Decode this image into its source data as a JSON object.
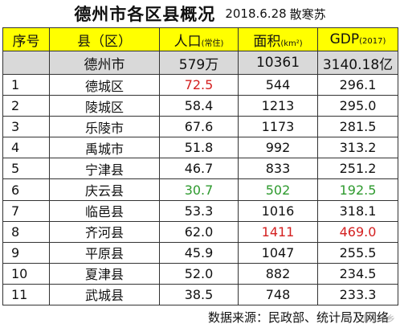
{
  "title": {
    "main": "德州市各区县概况",
    "date": "2018.6.28",
    "author": "散寒苏"
  },
  "headers": {
    "index": "序号",
    "county": "县（区）",
    "population": "人口",
    "population_unit": "(常住)",
    "area": "面积",
    "area_unit": "(km²)",
    "gdp": "GDP",
    "gdp_unit": "(2017)"
  },
  "total": {
    "name": "德州市",
    "population": "579万",
    "area": "10361",
    "gdp": "3140.18亿"
  },
  "rows": [
    {
      "idx": "1",
      "name": "德城区",
      "population": "72.5",
      "area": "544",
      "gdp": "296.1"
    },
    {
      "idx": "2",
      "name": "陵城区",
      "population": "58.4",
      "area": "1213",
      "gdp": "295.0"
    },
    {
      "idx": "3",
      "name": "乐陵市",
      "population": "67.6",
      "area": "1173",
      "gdp": "281.5"
    },
    {
      "idx": "4",
      "name": "禹城市",
      "population": "51.8",
      "area": "992",
      "gdp": "313.2"
    },
    {
      "idx": "5",
      "name": "宁津县",
      "population": "46.7",
      "area": "833",
      "gdp": "251.2"
    },
    {
      "idx": "6",
      "name": "庆云县",
      "population": "30.7",
      "area": "502",
      "gdp": "192.5"
    },
    {
      "idx": "7",
      "name": "临邑县",
      "population": "53.3",
      "area": "1016",
      "gdp": "318.1"
    },
    {
      "idx": "8",
      "name": "齐河县",
      "population": "62.0",
      "area": "1411",
      "gdp": "469.0"
    },
    {
      "idx": "9",
      "name": "平原县",
      "population": "45.9",
      "area": "1047",
      "gdp": "255.5"
    },
    {
      "idx": "10",
      "name": "夏津县",
      "population": "52.0",
      "area": "882",
      "gdp": "234.5"
    },
    {
      "idx": "11",
      "name": "武城县",
      "population": "38.5",
      "area": "748",
      "gdp": "233.3"
    }
  ],
  "colors": {
    "header_bg": "#ffff00",
    "total_bg": "#d9d9d9",
    "max_red": "#d42020",
    "min_green": "#2e9a2e"
  },
  "footer": "数据来源：民政部、统计局及网络",
  "watermark": "山东泽乡"
}
